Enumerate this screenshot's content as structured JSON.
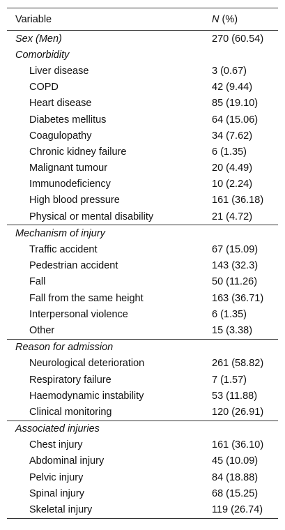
{
  "table": {
    "header": {
      "variable": "Variable",
      "n_symbol": "N",
      "n_unit": "(%)"
    },
    "top_rows": [
      {
        "label": "Sex (Men)",
        "value": "270 (60.54)"
      }
    ],
    "sections": [
      {
        "title": "Comorbidity",
        "rows": [
          [
            "Liver disease",
            "3 (0.67)"
          ],
          [
            "COPD",
            "42 (9.44)"
          ],
          [
            "Heart disease",
            "85 (19.10)"
          ],
          [
            "Diabetes mellitus",
            "64 (15.06)"
          ],
          [
            "Coagulopathy",
            "34 (7.62)"
          ],
          [
            "Chronic kidney failure",
            "6 (1.35)"
          ],
          [
            "Malignant tumour",
            "20 (4.49)"
          ],
          [
            "Immunodeficiency",
            "10 (2.24)"
          ],
          [
            "High blood pressure",
            "161 (36.18)"
          ],
          [
            "Physical or mental disability",
            "21 (4.72)"
          ]
        ]
      },
      {
        "title": "Mechanism of injury",
        "rows": [
          [
            "Traffic accident",
            "67 (15.09)"
          ],
          [
            "Pedestrian accident",
            "143 (32.3)"
          ],
          [
            "Fall",
            "50 (11.26)"
          ],
          [
            "Fall from the same height",
            "163 (36.71)"
          ],
          [
            "Interpersonal violence",
            "6 (1.35)"
          ],
          [
            "Other",
            "15 (3.38)"
          ]
        ]
      },
      {
        "title": "Reason for admission",
        "rows": [
          [
            "Neurological deterioration",
            "261 (58.82)"
          ],
          [
            "Respiratory failure",
            "7 (1.57)"
          ],
          [
            "Haemodynamic instability",
            "53 (11.88)"
          ],
          [
            "Clinical monitoring",
            "120 (26.91)"
          ]
        ]
      },
      {
        "title": "Associated injuries",
        "rows": [
          [
            "Chest injury",
            "161 (36.10)"
          ],
          [
            "Abdominal injury",
            "45 (10.09)"
          ],
          [
            "Pelvic injury",
            "84 (18.88)"
          ],
          [
            "Spinal injury",
            "68 (15.25)"
          ],
          [
            "Skeletal injury",
            "119 (26.74)"
          ]
        ]
      }
    ]
  }
}
